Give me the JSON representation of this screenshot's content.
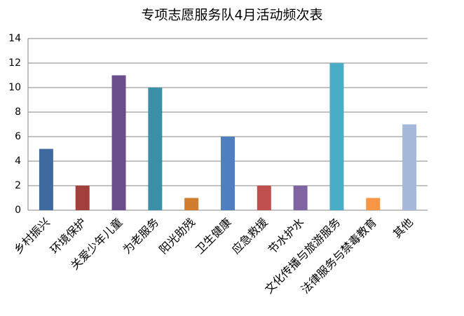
{
  "chart_data": {
    "type": "bar",
    "title": "专项志愿服务队4月活动频次表",
    "categories": [
      "乡村振兴",
      "环境保护",
      "关爱少年儿童",
      "为老服务",
      "阳光助残",
      "卫生健康",
      "应急救援",
      "节水护水",
      "文化传播与旅游服务",
      "法律服务与禁毒教育",
      "其他"
    ],
    "values": [
      5,
      2,
      11,
      10,
      1,
      6,
      2,
      2,
      12,
      1,
      7
    ],
    "colors": [
      "#3f6aa0",
      "#a33f3d",
      "#6a4f8c",
      "#3a90a6",
      "#d07d30",
      "#4f7fc0",
      "#c0504d",
      "#8064a2",
      "#4bacc6",
      "#f79646",
      "#a5b8d9"
    ],
    "ylim": [
      0,
      14
    ],
    "yticks": [
      0,
      2,
      4,
      6,
      8,
      10,
      12,
      14
    ],
    "grid": true
  }
}
